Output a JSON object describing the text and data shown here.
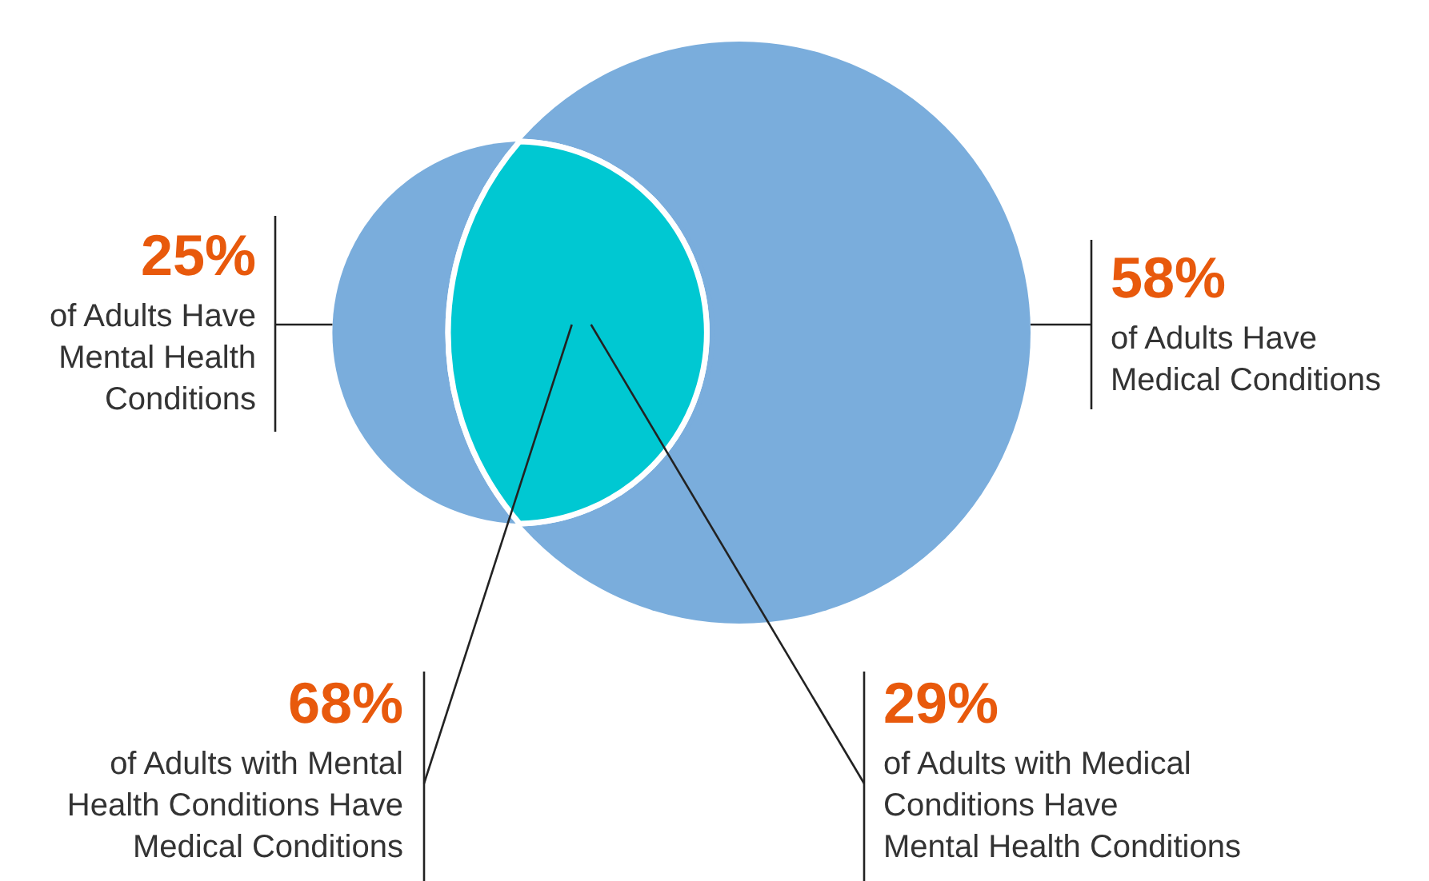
{
  "chart_data": {
    "type": "other",
    "categories": [
      "of Adults Have\nMental Health\nConditions",
      "of Adults Have\nMedical Conditions",
      "of Adults with Mental\nHealth Conditions Have\nMedical Conditions",
      "of Adults with Medical\nConditions Have\nMental Health Conditions"
    ],
    "values": [
      25,
      58,
      68,
      29
    ],
    "value_labels": [
      "25%",
      "58%",
      "68%",
      "29%"
    ],
    "colors": [
      "#7aaddc",
      "#7aaddc",
      "#00c8d2",
      "#00c8d2"
    ]
  }
}
